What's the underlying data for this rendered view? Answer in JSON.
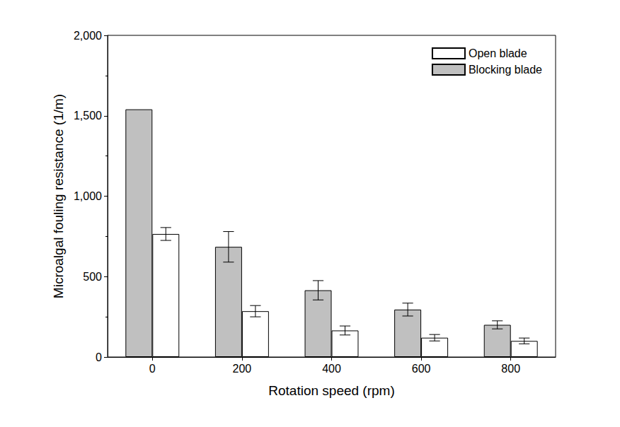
{
  "chart_data": {
    "type": "bar",
    "x_label": "Rotation speed (rpm)",
    "y_label": "Microalgal fouling resistance (1/m)",
    "categories": [
      0,
      200,
      400,
      600,
      800
    ],
    "series": [
      {
        "name": "Blocking blade",
        "color": "#c0c0c0",
        "values": [
          1540,
          685,
          415,
          295,
          200
        ],
        "errors": [
          null,
          95,
          60,
          40,
          25
        ]
      },
      {
        "name": "Open blade",
        "color": "#ffffff",
        "values": [
          765,
          285,
          165,
          120,
          100
        ],
        "errors": [
          40,
          35,
          28,
          20,
          18
        ]
      }
    ],
    "ylim": [
      0,
      2000
    ],
    "yticks": [
      0,
      500,
      1000,
      1500,
      2000
    ],
    "grid": false,
    "legend": "upper right"
  }
}
